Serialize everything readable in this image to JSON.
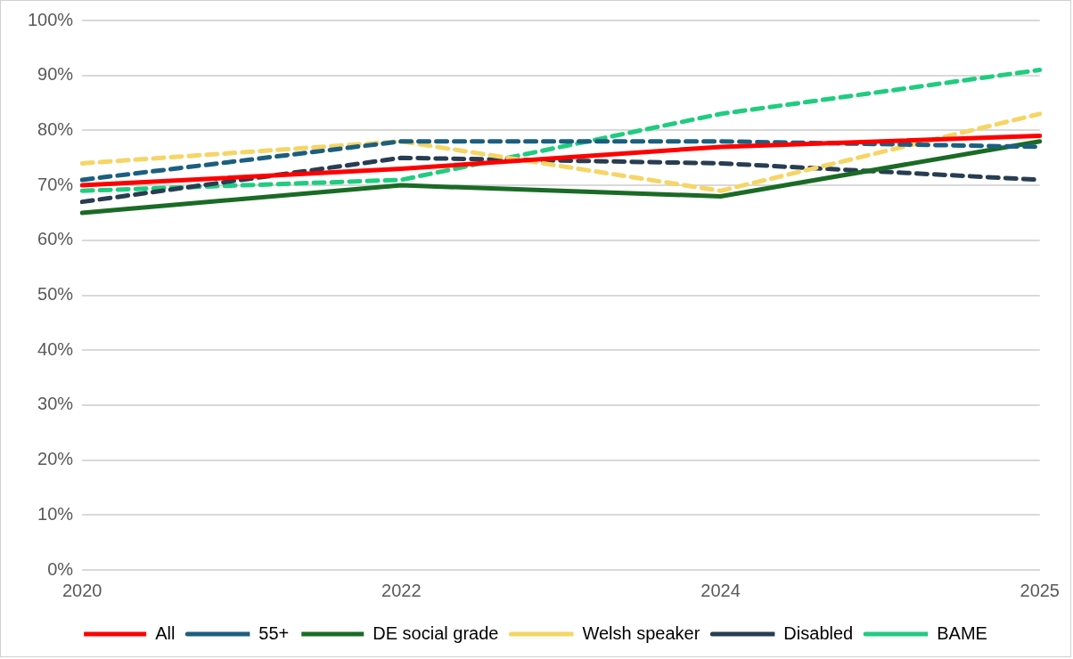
{
  "chart_data": {
    "type": "line",
    "categories": [
      "2020",
      "2022",
      "2024",
      "2025"
    ],
    "series": [
      {
        "name": "All",
        "color": "#ff0000",
        "line_style": "solid",
        "values": [
          70,
          73,
          77,
          79
        ]
      },
      {
        "name": "55+",
        "color": "#1b5f80",
        "line_style": "dashed",
        "values": [
          71,
          78,
          78,
          77
        ]
      },
      {
        "name": "DE social grade",
        "color": "#1a6b25",
        "line_style": "solid",
        "values": [
          65,
          70,
          68,
          78
        ]
      },
      {
        "name": "Welsh speaker",
        "color": "#f5d565",
        "line_style": "dashed",
        "values": [
          74,
          78,
          69,
          83
        ]
      },
      {
        "name": "Disabled",
        "color": "#283d52",
        "line_style": "dashed",
        "values": [
          67,
          75,
          74,
          71
        ]
      },
      {
        "name": "BAME",
        "color": "#20cc80",
        "line_style": "dashed",
        "values": [
          69,
          71,
          83,
          91
        ]
      }
    ],
    "ylim": [
      0,
      100
    ],
    "yticks": [
      {
        "value": 0,
        "label": "0%"
      },
      {
        "value": 10,
        "label": "10%"
      },
      {
        "value": 20,
        "label": "20%"
      },
      {
        "value": 30,
        "label": "30%"
      },
      {
        "value": 40,
        "label": "40%"
      },
      {
        "value": 50,
        "label": "50%"
      },
      {
        "value": 60,
        "label": "60%"
      },
      {
        "value": 70,
        "label": "70%"
      },
      {
        "value": 80,
        "label": "80%"
      },
      {
        "value": 90,
        "label": "90%"
      },
      {
        "value": 100,
        "label": "100%"
      }
    ],
    "grid": "y",
    "legend": "bottom",
    "marker": "none"
  }
}
